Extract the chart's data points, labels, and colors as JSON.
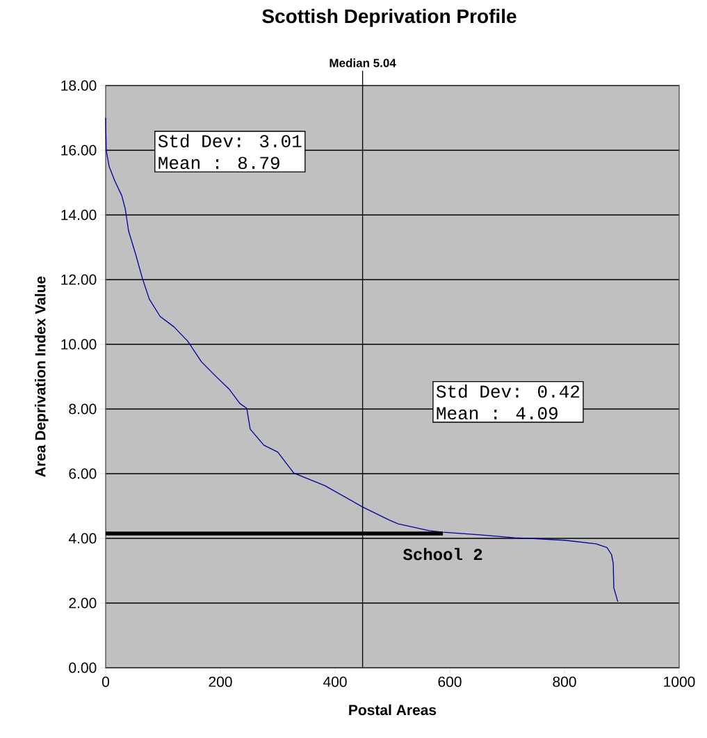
{
  "chart_data": {
    "type": "line",
    "title": "Scottish Deprivation Profile",
    "xlabel": "Postal Areas",
    "ylabel": "Area Deprivation Index Value",
    "xlim": [
      0,
      1000
    ],
    "xticks": [
      0,
      200,
      400,
      600,
      800,
      1000
    ],
    "ylim": [
      0,
      18
    ],
    "yticks": [
      {
        "value": 0,
        "label": "0.00"
      },
      {
        "value": 2,
        "label": "2.00"
      },
      {
        "value": 4,
        "label": "4.00"
      },
      {
        "value": 6,
        "label": "6.00"
      },
      {
        "value": 8,
        "label": "8.00"
      },
      {
        "value": 10,
        "label": "10.00"
      },
      {
        "value": 12,
        "label": "12.00"
      },
      {
        "value": 14,
        "label": "14.00"
      },
      {
        "value": 16,
        "label": "16.00"
      },
      {
        "value": 18,
        "label": "18.00"
      }
    ],
    "grid": "y",
    "series": [
      {
        "color": "#0000a0",
        "x": [
          0,
          1,
          6,
          16,
          28,
          34,
          40,
          52,
          64,
          76,
          95,
          119,
          143,
          167,
          191,
          216,
          234,
          246,
          252,
          276,
          300,
          328,
          382,
          448,
          495,
          510,
          564,
          588,
          652,
          713,
          801,
          855,
          874,
          882,
          885,
          886,
          893
        ],
        "values": [
          17.0,
          16.0,
          15.5,
          15.05,
          14.6,
          14.2,
          13.5,
          12.8,
          12.04,
          11.4,
          10.86,
          10.54,
          10.1,
          9.46,
          9.03,
          8.6,
          8.17,
          8.02,
          7.38,
          6.88,
          6.67,
          6.02,
          5.63,
          4.97,
          4.56,
          4.45,
          4.24,
          4.19,
          4.11,
          4.02,
          3.94,
          3.83,
          3.72,
          3.5,
          3.23,
          2.47,
          2.04
        ]
      },
      {
        "name": "School 2",
        "color": "#000000",
        "x": [
          0,
          588
        ],
        "values": [
          4.15,
          4.15
        ]
      }
    ],
    "ref_lines": [
      {
        "axis": "x",
        "value": 448,
        "label": "Median 5.04",
        "color": "#000000"
      }
    ],
    "annotations": [
      "Std Dev: 3.01",
      "Mean : 8.79",
      "Std Dev: 0.42",
      "Mean : 4.09"
    ]
  }
}
